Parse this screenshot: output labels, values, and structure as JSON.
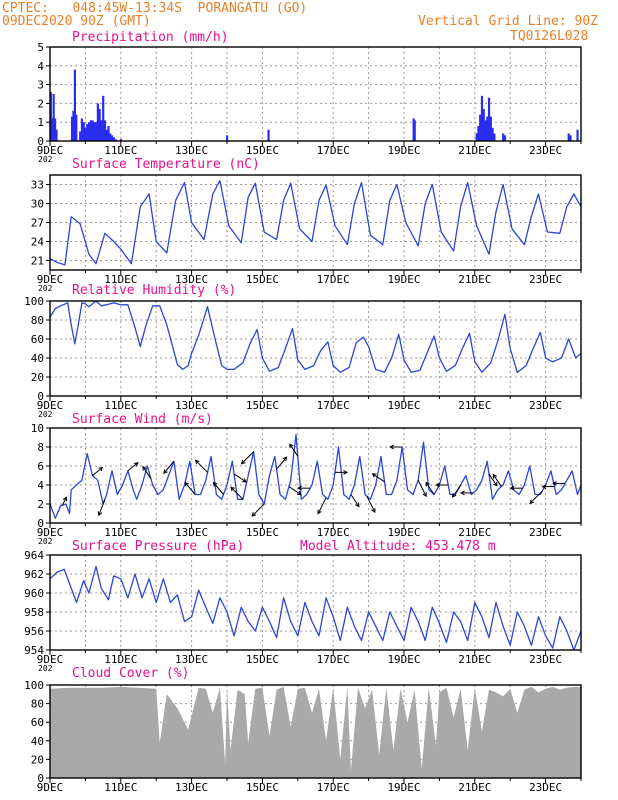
{
  "header": {
    "line1": "CPTEC:   048:45W-13:34S  PORANGATU (GO)",
    "line2": "09DEC2020 90Z (GMT)",
    "right1": "Vertical Grid Line: 90Z",
    "right2": "TQ0126L028"
  },
  "colors": {
    "header": "#e8802a",
    "title": "#e8118a",
    "line": "#2c45d8",
    "bar": "#2a2cf0",
    "cloud": "#a9a9a9",
    "arrow": "#000000"
  },
  "x_axis": {
    "tick_labels": [
      "9DEC",
      "11DEC",
      "13DEC",
      "15DEC",
      "17DEC",
      "19DEC",
      "21DEC",
      "23DEC"
    ],
    "tick_days": [
      0,
      2,
      4,
      6,
      8,
      10,
      12,
      14
    ],
    "range_days": [
      0,
      15
    ],
    "corner_label": "202"
  },
  "chart_data": [
    {
      "type": "bar",
      "title": "Precipitation (mm/h)",
      "ylim": [
        0,
        5
      ],
      "yticks": [
        "0",
        "1",
        "2",
        "3",
        "4",
        "5"
      ],
      "x_units": "days since 09DEC 09Z",
      "x": [
        0.02,
        0.06,
        0.1,
        0.14,
        0.18,
        0.62,
        0.66,
        0.7,
        0.74,
        0.85,
        0.9,
        0.95,
        1.0,
        1.05,
        1.1,
        1.15,
        1.2,
        1.25,
        1.3,
        1.35,
        1.4,
        1.45,
        1.5,
        1.55,
        1.6,
        1.65,
        1.7,
        1.75,
        1.8,
        1.85,
        2.0,
        5.0,
        6.17,
        10.27,
        10.3,
        12.05,
        12.1,
        12.15,
        12.2,
        12.25,
        12.3,
        12.35,
        12.4,
        12.45,
        12.5,
        12.55,
        12.8,
        12.85,
        14.65,
        14.7,
        14.9
      ],
      "values": [
        2.6,
        1.2,
        2.5,
        1.2,
        0.6,
        1.3,
        1.6,
        3.8,
        1.4,
        0.5,
        1.2,
        1.0,
        0.7,
        0.9,
        1.0,
        1.1,
        1.1,
        1.0,
        1.0,
        2.0,
        1.7,
        1.1,
        2.4,
        1.1,
        0.6,
        0.8,
        0.4,
        0.3,
        0.2,
        0.1,
        0.1,
        0.3,
        0.6,
        1.2,
        1.1,
        0.4,
        0.8,
        1.4,
        2.4,
        1.7,
        1.1,
        1.3,
        2.3,
        1.3,
        0.7,
        0.4,
        0.4,
        0.3,
        0.4,
        0.3,
        0.6
      ]
    },
    {
      "type": "line",
      "title": "Surface Temperature (nC)",
      "ylim": [
        19.5,
        34.5
      ],
      "yticks": [
        "21",
        "24",
        "27",
        "30",
        "33"
      ],
      "x_units": "days since 09DEC 09Z",
      "x": [
        0,
        0.2,
        0.42,
        0.6,
        0.85,
        1.1,
        1.3,
        1.55,
        1.8,
        2.0,
        2.3,
        2.55,
        2.8,
        3.0,
        3.3,
        3.55,
        3.8,
        4.0,
        4.35,
        4.6,
        4.8,
        5.05,
        5.4,
        5.6,
        5.8,
        6.05,
        6.4,
        6.6,
        6.8,
        7.05,
        7.4,
        7.6,
        7.8,
        8.05,
        8.4,
        8.6,
        8.8,
        9.05,
        9.4,
        9.6,
        9.8,
        10.05,
        10.4,
        10.6,
        10.8,
        11.05,
        11.4,
        11.6,
        11.8,
        12.05,
        12.4,
        12.6,
        12.8,
        13.05,
        13.4,
        13.6,
        13.8,
        14.05,
        14.4,
        14.6,
        14.8,
        15.0
      ],
      "values": [
        21.3,
        20.7,
        20.3,
        27.9,
        26.8,
        22.0,
        20.5,
        25.3,
        24.0,
        22.8,
        20.5,
        29.5,
        31.5,
        24.0,
        22.2,
        30.5,
        33.3,
        27.0,
        24.3,
        31.5,
        33.6,
        26.5,
        23.8,
        31.0,
        33.2,
        25.5,
        24.3,
        30.5,
        33.2,
        26.0,
        24.0,
        30.5,
        32.9,
        26.5,
        23.5,
        30.0,
        33.3,
        25.0,
        23.5,
        30.5,
        33.0,
        27.0,
        23.3,
        30.0,
        33.0,
        25.5,
        22.5,
        29.5,
        33.3,
        26.5,
        22.0,
        28.7,
        33.0,
        26.0,
        23.5,
        28.0,
        31.5,
        25.5,
        25.3,
        29.5,
        31.5,
        29.5
      ]
    },
    {
      "type": "line",
      "title": "Relative Humidity (%)",
      "ylim": [
        0,
        100
      ],
      "yticks": [
        "0",
        "20",
        "40",
        "60",
        "80",
        "100"
      ],
      "x_units": "days since 09DEC 09Z",
      "x": [
        0,
        0.15,
        0.3,
        0.5,
        0.6,
        0.7,
        0.8,
        0.9,
        1.0,
        1.1,
        1.3,
        1.45,
        1.6,
        1.8,
        2.0,
        2.2,
        2.4,
        2.55,
        2.7,
        2.9,
        3.1,
        3.3,
        3.6,
        3.75,
        3.9,
        4.0,
        4.2,
        4.45,
        4.65,
        4.85,
        5.0,
        5.2,
        5.45,
        5.65,
        5.85,
        6.0,
        6.2,
        6.45,
        6.65,
        6.85,
        7.0,
        7.2,
        7.45,
        7.65,
        7.85,
        8.0,
        8.2,
        8.45,
        8.65,
        8.85,
        9.0,
        9.2,
        9.45,
        9.65,
        9.85,
        10.0,
        10.2,
        10.45,
        10.65,
        10.85,
        11.0,
        11.2,
        11.45,
        11.65,
        11.85,
        12.0,
        12.2,
        12.45,
        12.65,
        12.85,
        13.0,
        13.2,
        13.45,
        13.65,
        13.85,
        14.0,
        14.2,
        14.45,
        14.65,
        14.85,
        15.0
      ],
      "values": [
        83,
        92,
        95,
        98,
        75,
        55,
        75,
        98,
        97,
        94,
        100,
        95,
        96,
        98,
        96,
        96,
        72,
        52,
        73,
        95,
        95,
        75,
        33,
        28,
        32,
        45,
        64,
        94,
        62,
        32,
        28,
        28,
        35,
        55,
        70,
        40,
        26,
        30,
        50,
        71,
        38,
        28,
        32,
        48,
        57,
        32,
        25,
        30,
        56,
        62,
        52,
        28,
        25,
        40,
        65,
        38,
        25,
        27,
        45,
        63,
        40,
        26,
        32,
        50,
        66,
        36,
        25,
        35,
        58,
        86,
        50,
        25,
        32,
        50,
        67,
        40,
        36,
        40,
        60,
        40,
        45
      ]
    },
    {
      "type": "line",
      "title": "Surface Wind (m/s)",
      "ylim": [
        0,
        10
      ],
      "yticks": [
        "0",
        "2",
        "4",
        "6",
        "8",
        "10"
      ],
      "x_units": "days since 09DEC 09Z",
      "x": [
        0.0,
        0.15,
        0.3,
        0.45,
        0.55,
        0.6,
        0.75,
        0.9,
        1.05,
        1.2,
        1.35,
        1.5,
        1.6,
        1.75,
        1.9,
        2.05,
        2.2,
        2.35,
        2.45,
        2.6,
        2.75,
        2.9,
        3.05,
        3.2,
        3.35,
        3.5,
        3.65,
        3.8,
        3.95,
        4.1,
        4.25,
        4.4,
        4.55,
        4.7,
        4.85,
        5.0,
        5.15,
        5.3,
        5.45,
        5.6,
        5.75,
        5.9,
        6.05,
        6.2,
        6.35,
        6.5,
        6.65,
        6.8,
        6.95,
        7.1,
        7.25,
        7.4,
        7.55,
        7.7,
        7.85,
        8.0,
        8.15,
        8.3,
        8.45,
        8.6,
        8.75,
        8.9,
        9.05,
        9.2,
        9.35,
        9.5,
        9.65,
        9.8,
        9.95,
        10.1,
        10.25,
        10.4,
        10.55,
        10.7,
        10.85,
        11.0,
        11.15,
        11.3,
        11.45,
        11.6,
        11.75,
        11.9,
        12.05,
        12.2,
        12.35,
        12.5,
        12.65,
        12.8,
        12.95,
        13.1,
        13.25,
        13.4,
        13.55,
        13.7,
        13.85,
        14.0,
        14.15,
        14.3,
        14.45,
        14.6,
        14.75,
        14.9,
        15.0
      ],
      "values": [
        2.0,
        0.5,
        1.8,
        2.0,
        1.0,
        3.5,
        4.0,
        4.5,
        7.3,
        5.0,
        4.5,
        2.0,
        3.0,
        5.5,
        3.0,
        4.0,
        5.5,
        3.5,
        2.5,
        4.0,
        6.0,
        4.0,
        3.0,
        3.5,
        5.0,
        6.5,
        2.5,
        4.0,
        6.5,
        3.0,
        3.0,
        4.5,
        7.0,
        3.0,
        2.5,
        4.0,
        6.5,
        2.5,
        2.5,
        5.0,
        7.5,
        3.0,
        2.0,
        5.0,
        7.0,
        3.0,
        2.5,
        4.5,
        9.3,
        2.5,
        3.0,
        4.0,
        6.5,
        3.0,
        2.5,
        4.0,
        8.0,
        3.0,
        2.5,
        4.0,
        7.0,
        3.0,
        2.5,
        4.0,
        7.0,
        3.0,
        3.0,
        4.5,
        8.0,
        3.5,
        3.0,
        4.5,
        8.5,
        3.5,
        3.0,
        4.0,
        6.0,
        3.0,
        3.0,
        4.0,
        5.0,
        3.0,
        3.5,
        4.5,
        6.5,
        2.5,
        3.5,
        4.0,
        5.5,
        3.5,
        3.0,
        4.0,
        6.0,
        3.0,
        3.0,
        4.0,
        5.5,
        3.0,
        3.5,
        4.5,
        5.5,
        3.0,
        4.0
      ],
      "arrows_x": [
        0.35,
        1.2,
        1.55,
        2.2,
        2.85,
        3.5,
        4.1,
        4.45,
        4.9,
        5.2,
        5.45,
        5.75,
        6.05,
        6.4,
        6.75,
        7.0,
        7.35,
        7.8,
        8.05,
        8.5,
        8.95,
        9.45,
        9.95,
        10.4,
        10.85,
        11.25,
        11.6,
        11.95,
        12.4,
        12.75,
        13.35,
        13.9,
        14.25,
        14.55
      ],
      "arrows_u": [
        1,
        2.5,
        -1.5,
        2.5,
        -2,
        -2.5,
        -2.5,
        -3,
        -2.5,
        3,
        -3,
        -3,
        -3,
        2.5,
        3,
        -2,
        -3,
        -2,
        3,
        2,
        2,
        -3,
        -3,
        2,
        -2,
        -3,
        -2,
        -3,
        2,
        -2,
        -3,
        -3,
        -3,
        -3
      ],
      "arrows_v": [
        2,
        2,
        -4,
        2,
        3,
        -3,
        3,
        3,
        3,
        -2,
        3,
        -3,
        -3,
        3,
        -2,
        3,
        0,
        -4,
        0,
        -3,
        -4,
        2,
        0,
        -4,
        3,
        0,
        -3,
        0,
        -3,
        3,
        0,
        -3,
        0,
        0
      ]
    },
    {
      "type": "line",
      "title": "Surface Pressure (hPa)",
      "subtitle": "Model Altitude: 453.478 m",
      "ylim": [
        954,
        964
      ],
      "yticks": [
        "954",
        "956",
        "958",
        "960",
        "962",
        "964"
      ],
      "x_units": "days since 09DEC 09Z",
      "x": [
        0,
        0.2,
        0.4,
        0.55,
        0.75,
        0.95,
        1.1,
        1.3,
        1.45,
        1.65,
        1.8,
        2.0,
        2.2,
        2.4,
        2.6,
        2.8,
        3.0,
        3.2,
        3.4,
        3.6,
        3.8,
        4.0,
        4.2,
        4.4,
        4.6,
        4.8,
        5.0,
        5.2,
        5.4,
        5.6,
        5.8,
        6.0,
        6.2,
        6.4,
        6.6,
        6.8,
        7.0,
        7.2,
        7.4,
        7.6,
        7.8,
        8.0,
        8.2,
        8.4,
        8.6,
        8.8,
        9.0,
        9.2,
        9.4,
        9.6,
        9.8,
        10.0,
        10.2,
        10.4,
        10.6,
        10.8,
        11.0,
        11.2,
        11.4,
        11.6,
        11.8,
        12.0,
        12.2,
        12.4,
        12.6,
        12.8,
        13.0,
        13.2,
        13.4,
        13.6,
        13.8,
        14.0,
        14.2,
        14.4,
        14.6,
        14.8,
        15.0
      ],
      "values": [
        961.5,
        962.2,
        962.5,
        961.0,
        959.0,
        961.3,
        960.0,
        962.8,
        960.5,
        959.3,
        961.8,
        961.5,
        959.5,
        962.0,
        959.5,
        961.5,
        959.0,
        961.5,
        959.0,
        959.8,
        957.0,
        957.5,
        960.3,
        958.5,
        956.8,
        959.5,
        958.0,
        955.5,
        958.5,
        957.0,
        956.0,
        958.5,
        957.0,
        955.3,
        959.5,
        957.0,
        955.5,
        959.0,
        957.0,
        955.5,
        959.5,
        957.5,
        955.0,
        958.5,
        956.5,
        955.0,
        958.0,
        956.5,
        955.0,
        958.0,
        956.5,
        955.0,
        958.5,
        957.0,
        955.0,
        958.5,
        956.8,
        954.8,
        958.0,
        957.0,
        955.0,
        959.0,
        957.5,
        955.3,
        959.0,
        956.5,
        954.5,
        958.0,
        956.5,
        954.5,
        957.5,
        955.5,
        954.2,
        957.5,
        956.0,
        954.0,
        956.0
      ]
    },
    {
      "type": "area",
      "title": "Cloud Cover (%)",
      "ylim": [
        0,
        100
      ],
      "yticks": [
        "0",
        "20",
        "40",
        "60",
        "80",
        "100"
      ],
      "x_units": "days since 09DEC 09Z",
      "x": [
        0,
        0.5,
        1.0,
        1.5,
        2.0,
        2.5,
        3.0,
        3.1,
        3.3,
        3.6,
        3.9,
        4.2,
        4.4,
        4.6,
        4.8,
        4.95,
        5.0,
        5.1,
        5.3,
        5.5,
        5.6,
        5.8,
        6.0,
        6.2,
        6.4,
        6.6,
        6.8,
        7.0,
        7.2,
        7.4,
        7.6,
        7.8,
        8.0,
        8.2,
        8.4,
        8.5,
        8.7,
        8.9,
        9.1,
        9.3,
        9.5,
        9.7,
        9.9,
        10.1,
        10.3,
        10.5,
        10.7,
        10.9,
        11.0,
        11.2,
        11.4,
        11.6,
        11.8,
        12.0,
        12.2,
        12.4,
        12.6,
        12.8,
        13.0,
        13.2,
        13.4,
        13.6,
        13.8,
        14.0,
        14.2,
        14.4,
        14.6,
        14.8,
        15.0
      ],
      "values": [
        96,
        97,
        97,
        97,
        98,
        97,
        96,
        38,
        90,
        75,
        52,
        97,
        96,
        70,
        97,
        15,
        97,
        30,
        95,
        90,
        38,
        96,
        97,
        45,
        95,
        98,
        55,
        96,
        97,
        70,
        96,
        40,
        97,
        20,
        98,
        8,
        97,
        75,
        95,
        25,
        97,
        30,
        96,
        60,
        95,
        10,
        97,
        35,
        92,
        97,
        65,
        96,
        30,
        97,
        50,
        95,
        92,
        88,
        96,
        70,
        95,
        98,
        92,
        96,
        98,
        95,
        97,
        98,
        98
      ]
    }
  ]
}
